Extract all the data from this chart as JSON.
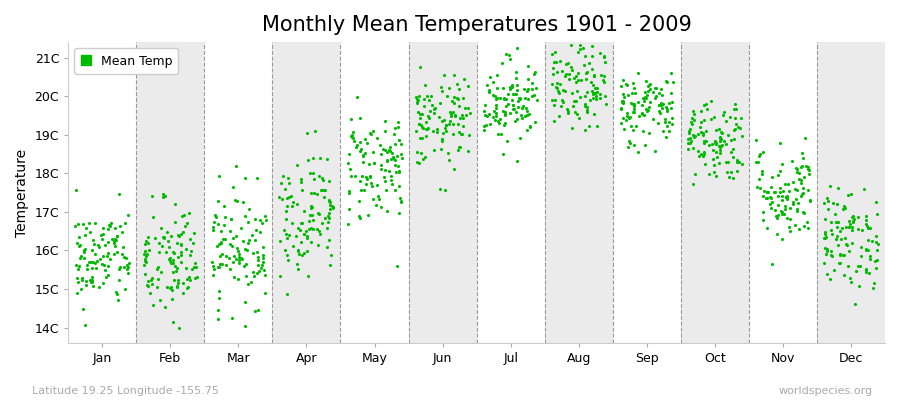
{
  "title": "Monthly Mean Temperatures 1901 - 2009",
  "ylabel": "Temperature",
  "xlabel_bottom": "Latitude 19.25 Longitude -155.75",
  "watermark": "worldspecies.org",
  "ytick_labels": [
    "14C",
    "15C",
    "16C",
    "17C",
    "18C",
    "19C",
    "20C",
    "21C"
  ],
  "ytick_values": [
    14,
    15,
    16,
    17,
    18,
    19,
    20,
    21
  ],
  "ylim": [
    13.6,
    21.4
  ],
  "months": [
    "Jan",
    "Feb",
    "Mar",
    "Apr",
    "May",
    "Jun",
    "Jul",
    "Aug",
    "Sep",
    "Oct",
    "Nov",
    "Dec"
  ],
  "month_centers": [
    1,
    2,
    3,
    4,
    5,
    6,
    7,
    8,
    9,
    10,
    11,
    12
  ],
  "mean_temps": [
    15.8,
    15.7,
    16.1,
    17.0,
    18.2,
    19.3,
    19.9,
    20.2,
    19.7,
    18.9,
    17.5,
    16.3
  ],
  "std_temps": [
    0.65,
    0.8,
    0.75,
    0.8,
    0.75,
    0.6,
    0.55,
    0.55,
    0.5,
    0.55,
    0.65,
    0.65
  ],
  "n_years": 109,
  "dot_color": "#00BB00",
  "dot_size": 5,
  "background_color": "#ffffff",
  "panel_color_light": "#ebebeb",
  "panel_color_white": "#ffffff",
  "legend_label": "Mean Temp",
  "title_fontsize": 15,
  "axis_fontsize": 10,
  "tick_fontsize": 9,
  "seed": 42
}
